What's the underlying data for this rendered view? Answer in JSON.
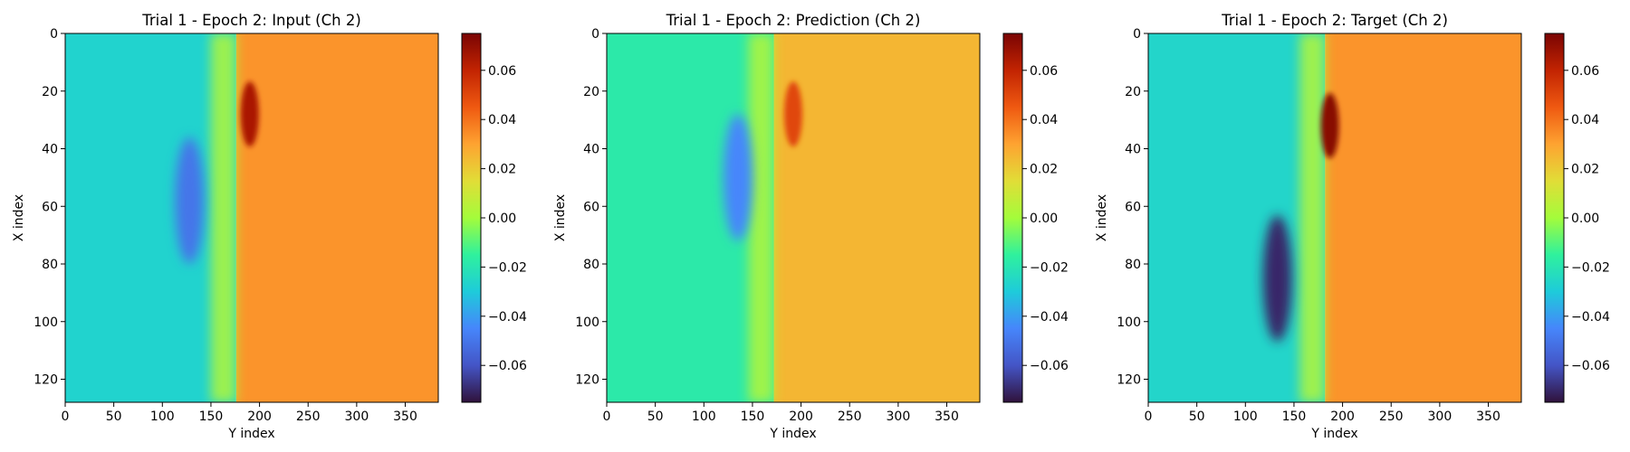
{
  "chart_data": [
    {
      "type": "heatmap",
      "title": "Trial 1 - Epoch 2: Input (Ch 2)",
      "xlabel": "Y index",
      "ylabel": "X index",
      "xlim": [
        0,
        384
      ],
      "ylim": [
        128,
        0
      ],
      "xticks": [
        "0",
        "50",
        "100",
        "150",
        "200",
        "250",
        "300",
        "350"
      ],
      "yticks": [
        "0",
        "20",
        "40",
        "60",
        "80",
        "100",
        "120"
      ],
      "colormap": "turbo",
      "colorbar": {
        "range": [
          -0.075,
          0.075
        ],
        "ticks": [
          "0.06",
          "0.04",
          "0.02",
          "0.00",
          "−0.02",
          "−0.04",
          "−0.06"
        ]
      },
      "regions": {
        "left_level": -0.027,
        "right_level": 0.033,
        "front_y": 176,
        "trough": {
          "y": 128,
          "x": 58,
          "value": -0.05
        },
        "peak": {
          "y": 190,
          "x": 28,
          "value": 0.065
        }
      }
    },
    {
      "type": "heatmap",
      "title": "Trial 1 - Epoch 2: Prediction (Ch 2)",
      "xlabel": "Y index",
      "ylabel": "X index",
      "xlim": [
        0,
        384
      ],
      "ylim": [
        128,
        0
      ],
      "xticks": [
        "0",
        "50",
        "100",
        "150",
        "200",
        "250",
        "300",
        "350"
      ],
      "yticks": [
        "0",
        "20",
        "40",
        "60",
        "80",
        "100",
        "120"
      ],
      "colormap": "turbo",
      "colorbar": {
        "range": [
          -0.075,
          0.075
        ],
        "ticks": [
          "0.06",
          "0.04",
          "0.02",
          "0.00",
          "−0.02",
          "−0.04",
          "−0.06"
        ]
      },
      "regions": {
        "left_level": -0.018,
        "right_level": 0.025,
        "front_y": 172,
        "trough": {
          "y": 135,
          "x": 50,
          "value": -0.045
        },
        "peak": {
          "y": 192,
          "x": 28,
          "value": 0.05
        }
      }
    },
    {
      "type": "heatmap",
      "title": "Trial 1 - Epoch 2: Target (Ch 2)",
      "xlabel": "Y index",
      "ylabel": "X index",
      "xlim": [
        0,
        384
      ],
      "ylim": [
        128,
        0
      ],
      "xticks": [
        "0",
        "50",
        "100",
        "150",
        "200",
        "250",
        "300",
        "350"
      ],
      "yticks": [
        "0",
        "20",
        "40",
        "60",
        "80",
        "100",
        "120"
      ],
      "colormap": "turbo",
      "colorbar": {
        "range": [
          -0.075,
          0.075
        ],
        "ticks": [
          "0.06",
          "0.04",
          "0.02",
          "0.00",
          "−0.02",
          "−0.04",
          "−0.06"
        ]
      },
      "regions": {
        "left_level": -0.026,
        "right_level": 0.033,
        "front_y": 182,
        "trough": {
          "y": 133,
          "x": 85,
          "value": -0.07
        },
        "peak": {
          "y": 187,
          "x": 32,
          "value": 0.072
        }
      }
    }
  ]
}
